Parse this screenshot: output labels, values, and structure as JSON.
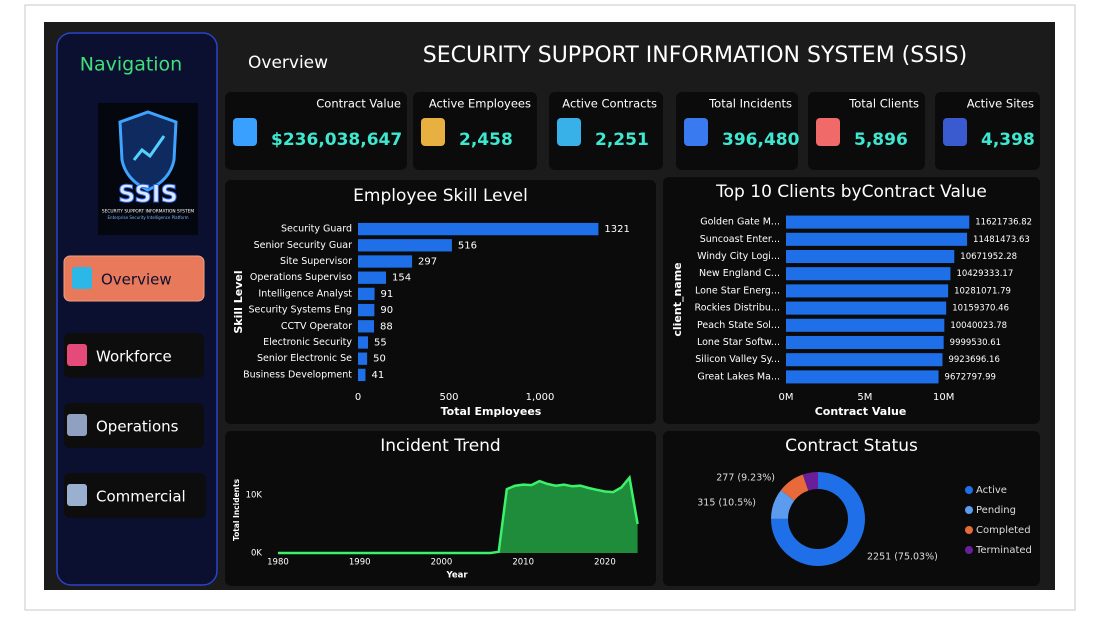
{
  "nav": {
    "title": "Navigation",
    "logo": {
      "name": "SSIS",
      "full_name": "SECURITY SUPPORT INFORMATION SYSTEM",
      "tagline": "Enterprise Security Intelligence Platform"
    },
    "buttons": [
      "Overview",
      "Workforce",
      "Operations",
      "Commercial"
    ]
  },
  "header": {
    "page": "Overview",
    "title": "SECURITY SUPPORT INFORMATION SYSTEM (SSIS)"
  },
  "kpis": [
    {
      "label": "Contract Value",
      "value": "$236,038,647"
    },
    {
      "label": "Active Employees",
      "value": "2,458"
    },
    {
      "label": "Active Contracts",
      "value": "2,251"
    },
    {
      "label": "Total Incidents",
      "value": "396,480"
    },
    {
      "label": "Total Clients",
      "value": "5,896"
    },
    {
      "label": "Active Sites",
      "value": "4,398"
    }
  ],
  "chart_data": [
    {
      "type": "bar",
      "title": "Employee Skill Level",
      "categories": [
        "Security Guard",
        "Senior Security Guar",
        "Site Supervisor",
        "Operations Superviso",
        "Intelligence Analyst",
        "Security Systems Eng",
        "CCTV Operator",
        "Electronic Security",
        "Senior Electronic Se",
        "Business Development"
      ],
      "values": [
        1321,
        516,
        297,
        154,
        91,
        90,
        88,
        55,
        50,
        41
      ],
      "color": "#1f6fe8",
      "xlim": [
        0,
        1500
      ],
      "xticks": [
        0,
        500,
        {
          "value": 1000,
          "label": "1,000"
        }
      ],
      "xlabel": "Total Employees",
      "ylabel": "Skill Level"
    },
    {
      "type": "bar",
      "title": "Top 10 Clients byContract Value",
      "categories": [
        "Golden Gate M...",
        "Suncoast Enter...",
        "Windy City Logi...",
        "New England C...",
        "Lone Star Energ...",
        "Rockies Distribu...",
        "Peach State Sol...",
        "Lone Star Softw...",
        "Silicon Valley Sy...",
        "Great Lakes Ma..."
      ],
      "values": [
        11621736.82,
        11481473.63,
        10671952.28,
        10429333.17,
        10281071.79,
        10159370.46,
        10040023.78,
        9999530.61,
        9923696.16,
        9672797.99
      ],
      "color": "#1f6fe8",
      "xlim": [
        0,
        13000000
      ],
      "xticks": [
        {
          "value": 0,
          "label": "0M"
        },
        {
          "value": 5000000,
          "label": "5M"
        },
        {
          "value": 10000000,
          "label": "10M"
        }
      ],
      "xlabel": "Contract Value",
      "ylabel": "client_name"
    },
    {
      "type": "area",
      "title": "Incident Trend",
      "x": [
        1980,
        1981,
        1982,
        1983,
        1984,
        1985,
        1986,
        1987,
        1988,
        1989,
        1990,
        1991,
        1992,
        1993,
        1994,
        1995,
        1996,
        1997,
        1998,
        1999,
        2000,
        2001,
        2002,
        2003,
        2004,
        2005,
        2006,
        2007,
        2008,
        2009,
        2010,
        2011,
        2012,
        2013,
        2014,
        2015,
        2016,
        2017,
        2018,
        2019,
        2020,
        2021,
        2022,
        2023,
        2024
      ],
      "values": [
        0,
        0,
        0,
        0,
        0,
        0,
        0,
        0,
        0,
        0,
        0,
        0,
        0,
        0,
        0,
        0,
        0,
        0,
        0,
        0,
        0,
        0,
        0,
        0,
        0,
        0,
        0,
        200,
        11000,
        11600,
        11800,
        11700,
        12400,
        11900,
        11600,
        11800,
        11500,
        11600,
        11200,
        10900,
        10600,
        10500,
        11300,
        13000,
        5000
      ],
      "color": "#1e8c3a",
      "line_color": "#3df26b",
      "xlim": [
        1979,
        2025
      ],
      "ylim": [
        0,
        14000
      ],
      "xticks": [
        1980,
        1990,
        2000,
        2010,
        2020
      ],
      "yticks": [
        {
          "value": 0,
          "label": "0K"
        },
        {
          "value": 10000,
          "label": "10K"
        }
      ],
      "xlabel": "Year",
      "ylabel": "Total Incidents"
    },
    {
      "type": "donut",
      "title": "Contract Status",
      "categories": [
        "Active",
        "Pending",
        "Completed",
        "Terminated"
      ],
      "values": [
        2251,
        315,
        277,
        157
      ],
      "value_labels": [
        "2251 (75.03%)",
        "315 (10.5%)",
        "277 (9.23%)",
        null
      ],
      "colors": [
        "#1f6fe8",
        "#5b9bf0",
        "#e8693a",
        "#6a1e9a"
      ]
    }
  ]
}
